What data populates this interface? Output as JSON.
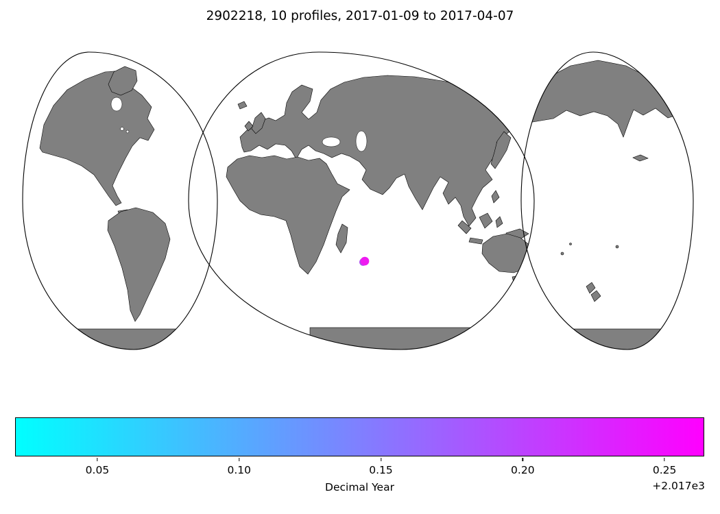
{
  "title": "2902218, 10 profiles, 2017-01-09 to 2017-04-07",
  "colorbar": {
    "label": "Decimal Year",
    "offset_text": "+2.017e3",
    "vmin": 0.021,
    "vmax": 0.264,
    "ticks": [
      {
        "value": 0.05,
        "label": "0.05"
      },
      {
        "value": 0.1,
        "label": "0.10"
      },
      {
        "value": 0.15,
        "label": "0.15"
      },
      {
        "value": 0.2,
        "label": "0.20"
      },
      {
        "value": 0.25,
        "label": "0.25"
      }
    ],
    "colormap": "cool",
    "start_color": "#00ffff",
    "end_color": "#ff00ff"
  },
  "map": {
    "projection_style": "interrupted-3-lobe-world",
    "land_color": "#808080",
    "ocean_color": "#ffffff",
    "outline_color": "#000000"
  },
  "chart_data": {
    "type": "scatter",
    "title": "2902218, 10 profiles, 2017-01-09 to 2017-04-07",
    "float_id": "2902218",
    "n_profiles": 10,
    "date_start": "2017-01-09",
    "date_end": "2017-04-07",
    "colorbar_label": "Decimal Year",
    "colorbar_offset": "+2.017e3",
    "colorbar_range_decimal_year": [
      2017.021,
      2017.264
    ],
    "points": [
      {
        "region": "Indian Ocean, southeast of Madagascar",
        "approx_lon": 57,
        "approx_lat": -21,
        "decimal_year_latest": 2017.26,
        "note": "10 overlapping profile positions form one tight magenta cluster"
      }
    ],
    "markers": [
      {
        "fx": 0.5045,
        "fy": 0.658,
        "r": 5.5,
        "color": "#b04cee"
      },
      {
        "fx": 0.5069,
        "fy": 0.6551,
        "r": 6.3,
        "color": "#ee1bf0"
      }
    ]
  }
}
